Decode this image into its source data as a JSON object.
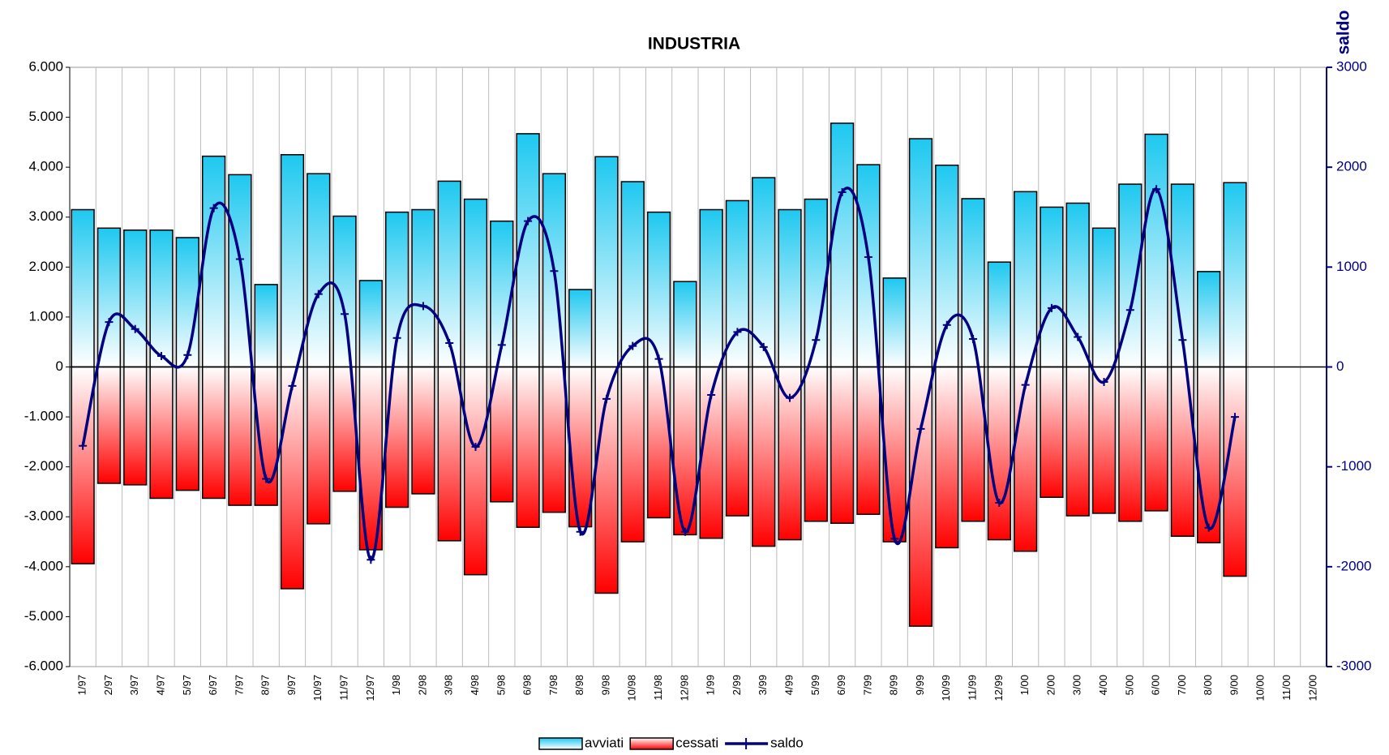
{
  "chart_data": {
    "type": "bar",
    "title": "INDUSTRIA",
    "annotations": [
      "avviati",
      "cessati"
    ],
    "y2_label": "saldo",
    "categories": [
      "1/97",
      "2/97",
      "3/97",
      "4/97",
      "5/97",
      "6/97",
      "7/97",
      "8/97",
      "9/97",
      "10/97",
      "11/97",
      "12/97",
      "1/98",
      "2/98",
      "3/98",
      "4/98",
      "5/98",
      "6/98",
      "7/98",
      "8/98",
      "9/98",
      "10/98",
      "11/98",
      "12/98",
      "1/99",
      "2/99",
      "3/99",
      "4/99",
      "5/99",
      "6/99",
      "7/99",
      "8/99",
      "9/99",
      "10/99",
      "11/99",
      "12/99",
      "1/00",
      "2/00",
      "3/00",
      "4/00",
      "5/00",
      "6/00",
      "7/00",
      "8/00",
      "9/00",
      "10/00",
      "11/00",
      "12/00"
    ],
    "series": [
      {
        "name": "avviati",
        "type": "bar",
        "color": "#1ec8f0",
        "values": [
          3150,
          2780,
          2740,
          2740,
          2590,
          4220,
          3850,
          1650,
          4250,
          3870,
          3020,
          1730,
          3100,
          3150,
          3720,
          3360,
          2920,
          4670,
          3870,
          1550,
          4210,
          3710,
          3100,
          1710,
          3150,
          3330,
          3790,
          3150,
          3360,
          4880,
          4050,
          1780,
          4570,
          4040,
          3370,
          2100,
          3510,
          3200,
          3280,
          2780,
          3660,
          4660,
          3660,
          1910,
          3690,
          null,
          null,
          null
        ]
      },
      {
        "name": "cessati",
        "type": "bar",
        "color": "#ff0000",
        "values": [
          -3940,
          -2330,
          -2360,
          -2630,
          -2470,
          -2630,
          -2770,
          -2770,
          -4440,
          -3140,
          -2490,
          -3660,
          -2810,
          -2540,
          -3480,
          -4160,
          -2700,
          -3210,
          -2910,
          -3200,
          -4530,
          -3500,
          -3020,
          -3360,
          -3430,
          -2980,
          -3590,
          -3460,
          -3090,
          -3130,
          -2950,
          -3500,
          -5190,
          -3620,
          -3090,
          -3460,
          -3690,
          -2610,
          -2980,
          -2930,
          -3090,
          -2880,
          -3390,
          -3520,
          -4190,
          null,
          null,
          null
        ]
      },
      {
        "name": "saldo",
        "type": "line",
        "axis": "y2",
        "color": "#000080",
        "values": [
          -790,
          450,
          380,
          110,
          120,
          1590,
          1080,
          -1120,
          -190,
          730,
          530,
          -1930,
          290,
          610,
          240,
          -800,
          220,
          1460,
          960,
          -1650,
          -320,
          210,
          80,
          -1650,
          -280,
          350,
          200,
          -310,
          270,
          1750,
          1100,
          -1720,
          -620,
          420,
          280,
          -1360,
          -180,
          590,
          300,
          -150,
          570,
          1780,
          270,
          -1610,
          -500,
          null,
          null,
          null
        ]
      }
    ],
    "ylim": [
      -6000,
      6000
    ],
    "yticks": [
      {
        "value": -6000,
        "label": "-6.000"
      },
      {
        "value": -5000,
        "label": "-5.000"
      },
      {
        "value": -4000,
        "label": "-4.000"
      },
      {
        "value": -3000,
        "label": "-3.000"
      },
      {
        "value": -2000,
        "label": "-2.000"
      },
      {
        "value": -1000,
        "label": "-1.000"
      },
      0,
      {
        "value": 1000,
        "label": "1.000"
      },
      {
        "value": 2000,
        "label": "2.000"
      },
      {
        "value": 3000,
        "label": "3.000"
      },
      {
        "value": 4000,
        "label": "4.000"
      },
      {
        "value": 5000,
        "label": "5.000"
      },
      {
        "value": 6000,
        "label": "6.000"
      }
    ],
    "y2lim": [
      -3000,
      3000
    ],
    "y2ticks": [
      -3000,
      -2000,
      -1000,
      0,
      1000,
      2000,
      3000
    ],
    "grid": true,
    "legend": "bottom"
  }
}
